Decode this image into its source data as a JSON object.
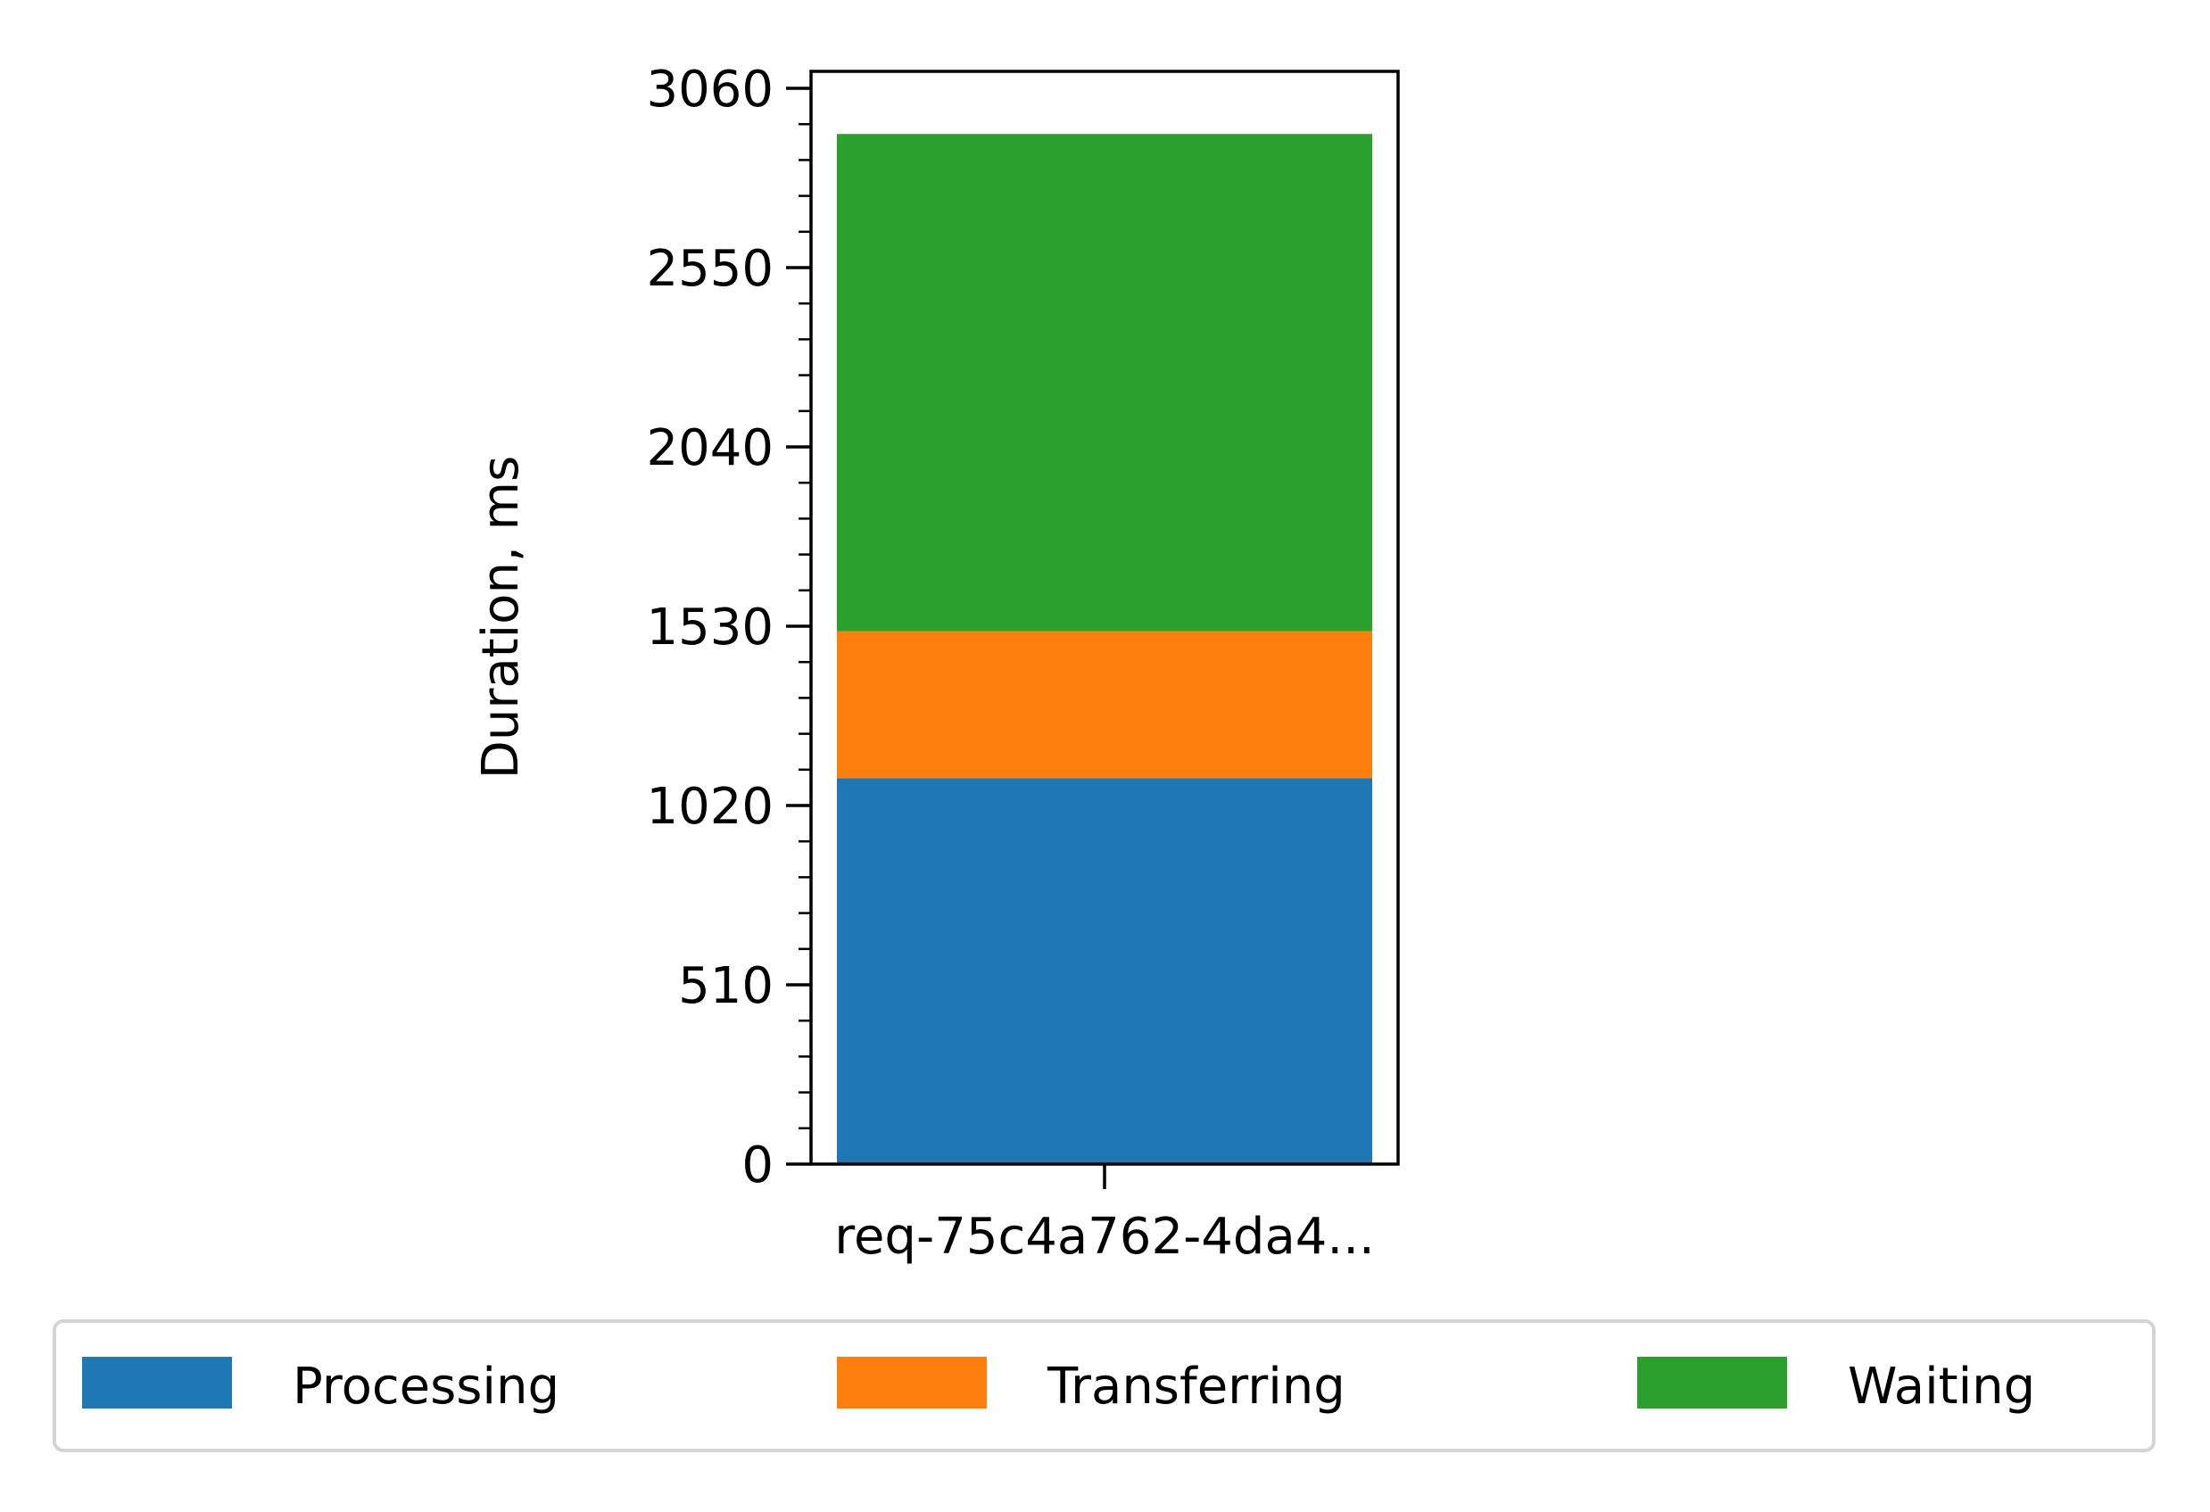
{
  "chart_data": {
    "type": "bar",
    "stacked": true,
    "categories": [
      "req-75c4a762-4da4..."
    ],
    "series": [
      {
        "name": "Processing",
        "values": [
          1098
        ],
        "color": "#1f77b4"
      },
      {
        "name": "Transferring",
        "values": [
          418
        ],
        "color": "#ff7f0e"
      },
      {
        "name": "Waiting",
        "values": [
          1414
        ],
        "color": "#2ca02c"
      }
    ],
    "title": "",
    "xlabel": "",
    "ylabel": "Duration, ms",
    "ylim": [
      0,
      3060
    ],
    "yticks": [
      0,
      510,
      1020,
      1530,
      2040,
      2550,
      3060
    ],
    "yticks_minor_step": 102,
    "grid": false,
    "legend_position": "bottom"
  }
}
